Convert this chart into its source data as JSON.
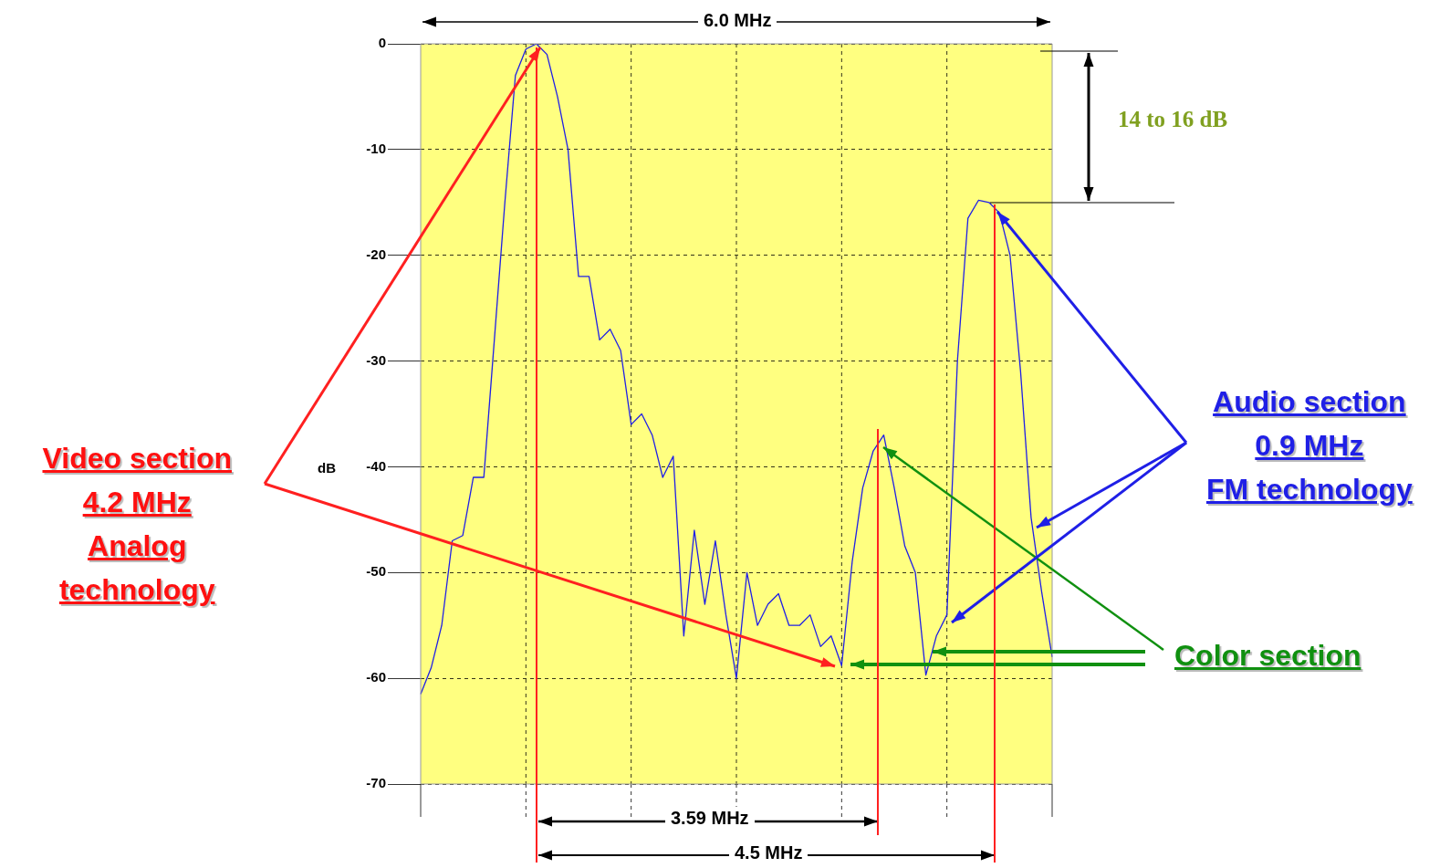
{
  "chart_data": {
    "type": "line",
    "ylabel": "dB",
    "ylim": [
      -70,
      0
    ],
    "categories": [
      null,
      null,
      null,
      null,
      null,
      null,
      null,
      null,
      null,
      null,
      null,
      null,
      null,
      null,
      null,
      null,
      null,
      null,
      null,
      null,
      null,
      null,
      null,
      null,
      null,
      null,
      null,
      null,
      null,
      null,
      null,
      null,
      null,
      null,
      null,
      null,
      null,
      null,
      null,
      null,
      null,
      null,
      null,
      null,
      null,
      null,
      null,
      null,
      null,
      null,
      null,
      null,
      null,
      null,
      null,
      null,
      null,
      null,
      null,
      null,
      null
    ],
    "yticks": [
      0,
      -10,
      -20,
      -30,
      -40,
      -50,
      -60,
      -70
    ],
    "tick_labels": "y",
    "grid": true,
    "legend": false,
    "marker": "none",
    "line_style": "solid",
    "series": [
      {
        "color": "#1f1fe6",
        "values": [
          -61.5,
          -59,
          -55,
          -47,
          -46.5,
          -41,
          -41,
          -28,
          -15,
          -3,
          -0.5,
          0,
          -1,
          -5,
          -10,
          -22,
          -22,
          -28,
          -27,
          -29,
          -36,
          -35,
          -37,
          -41,
          -39,
          -56,
          -46,
          -53,
          -47,
          -54,
          -60,
          -50,
          -55,
          -53,
          -52,
          -55,
          -55,
          -54,
          -57,
          -56,
          -58.8,
          -49,
          -42,
          -38.5,
          -37,
          -42,
          -47.5,
          -50,
          -59.7,
          -56,
          -54,
          -30,
          -16.5,
          -14.8,
          -15,
          -16,
          -20,
          -31,
          -44.8,
          -51.8,
          -58
        ]
      }
    ],
    "annotations": [
      "6.0 MHz",
      "14 to 16 dB",
      "3.59 MHz",
      "4.5 MHz",
      "Video section\n4.2 MHz\nAnalog\n technology",
      "Audio section\n0.9 MHz\nFM technology",
      "Color section"
    ]
  }
}
